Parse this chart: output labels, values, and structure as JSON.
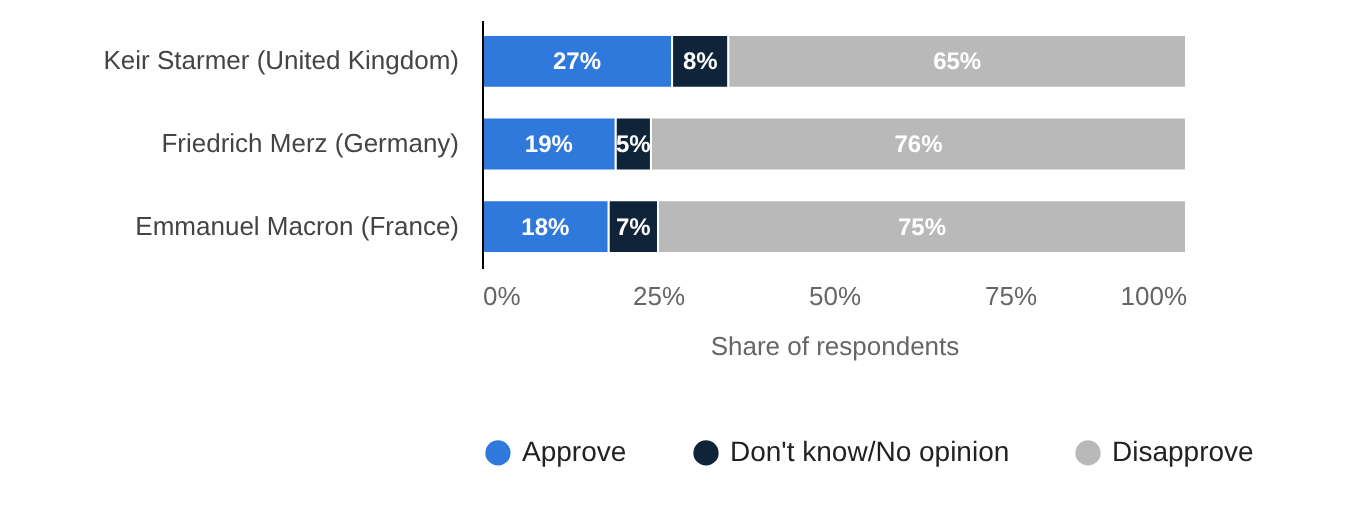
{
  "chart_data": {
    "type": "bar",
    "orientation": "horizontal",
    "stacked": true,
    "categories": [
      "Keir Starmer (United Kingdom)",
      "Friedrich Merz (Germany)",
      "Emmanuel Macron (France)"
    ],
    "series": [
      {
        "name": "Approve",
        "color": "#2f78dc",
        "values": [
          27,
          19,
          18
        ],
        "value_labels": [
          "27%",
          "19%",
          "18%"
        ]
      },
      {
        "name": "Don't know/No opinion",
        "color": "#0f2438",
        "values": [
          8,
          5,
          7
        ],
        "value_labels": [
          "8%",
          "5%",
          "7%"
        ]
      },
      {
        "name": "Disapprove",
        "color": "#b9b9b9",
        "values": [
          65,
          76,
          75
        ],
        "value_labels": [
          "65%",
          "76%",
          "75%"
        ]
      }
    ],
    "xlim": [
      0,
      100
    ],
    "xticks": [
      {
        "value": 0,
        "label": "0%"
      },
      {
        "value": 25,
        "label": "25%"
      },
      {
        "value": 50,
        "label": "50%"
      },
      {
        "value": 75,
        "label": "75%"
      },
      {
        "value": 100,
        "label": "100%"
      }
    ],
    "xlabel": "Share of respondents",
    "grid": false,
    "legend": "bottom"
  }
}
